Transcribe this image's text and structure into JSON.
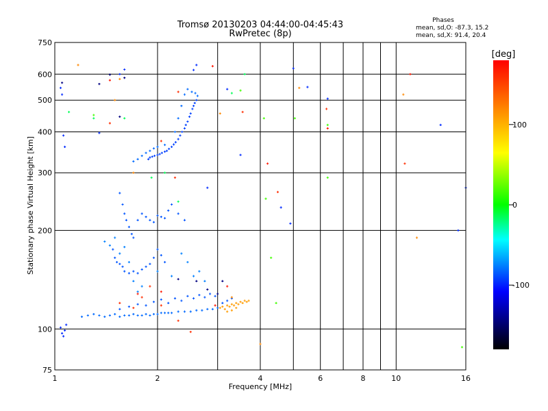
{
  "chart_data": {
    "type": "scatter",
    "title": "Tromsø 20130203 04:44:00-04:45:43",
    "subtitle": "RwPretec (8p)",
    "xlabel": "Frequency [MHz]",
    "ylabel": "Stationary phase Virtual Height [km]",
    "x_scale": "log",
    "y_scale": "log",
    "xlim": [
      1,
      16
    ],
    "ylim": [
      75,
      750
    ],
    "x_ticks": [
      1,
      2,
      4,
      6,
      8,
      10,
      16
    ],
    "x_tick_labels": [
      "1",
      "2",
      "4",
      "6",
      "8",
      "10",
      "16"
    ],
    "x_gridlines": [
      1,
      2,
      3,
      4,
      5,
      6,
      7,
      8,
      9,
      10,
      16
    ],
    "y_ticks": [
      75,
      100,
      200,
      300,
      400,
      500,
      600,
      750
    ],
    "y_tick_labels": [
      "75",
      "100",
      "200",
      "300",
      "400",
      "500",
      "600",
      "750"
    ],
    "y_gridlines": [
      100,
      200,
      300,
      400,
      500,
      600
    ],
    "grid": true,
    "stats": {
      "heading": "Phases",
      "line_o": "mean, sd,O: -87.3, 15.2",
      "line_x": "mean, sd,X:  91.4, 20.4"
    },
    "colorbar": {
      "label": "[deg]",
      "range": [
        -180,
        180
      ],
      "tick_values": [
        100,
        0,
        -100
      ],
      "tick_labels": [
        "100",
        "0",
        "-100"
      ],
      "palette": [
        "#ff0000",
        "#ff8800",
        "#ffff00",
        "#00ff00",
        "#00ffff",
        "#0000ff",
        "#000000"
      ]
    },
    "traces": [
      {
        "phase": -95,
        "points": [
          [
            1.2,
            109
          ],
          [
            1.25,
            110
          ],
          [
            1.3,
            111
          ],
          [
            1.35,
            110
          ],
          [
            1.4,
            109
          ],
          [
            1.45,
            110
          ],
          [
            1.5,
            111
          ],
          [
            1.55,
            109
          ],
          [
            1.6,
            110
          ],
          [
            1.65,
            110
          ],
          [
            1.7,
            111
          ],
          [
            1.75,
            110
          ],
          [
            1.8,
            110
          ],
          [
            1.85,
            111
          ],
          [
            1.9,
            110
          ],
          [
            1.95,
            111
          ],
          [
            2.0,
            111
          ],
          [
            2.05,
            112
          ],
          [
            2.1,
            112
          ],
          [
            2.15,
            112
          ],
          [
            2.2,
            112
          ],
          [
            2.3,
            113
          ],
          [
            2.4,
            113
          ],
          [
            2.5,
            113
          ],
          [
            2.6,
            114
          ],
          [
            2.7,
            114
          ],
          [
            2.8,
            115
          ],
          [
            2.9,
            115
          ],
          [
            3.0,
            116
          ]
        ]
      },
      {
        "phase": -100,
        "points": [
          [
            1.55,
            115
          ],
          [
            1.65,
            117
          ],
          [
            1.75,
            119
          ],
          [
            1.85,
            118
          ],
          [
            1.95,
            121
          ],
          [
            2.05,
            123
          ],
          [
            2.15,
            120
          ],
          [
            2.25,
            124
          ],
          [
            2.35,
            122
          ],
          [
            2.45,
            126
          ],
          [
            2.55,
            124
          ],
          [
            2.65,
            127
          ],
          [
            2.75,
            125
          ],
          [
            2.85,
            128
          ],
          [
            2.95,
            126
          ],
          [
            3.1,
            120
          ],
          [
            3.2,
            122
          ],
          [
            3.3,
            124
          ]
        ]
      },
      {
        "phase": 110,
        "points": [
          [
            3.05,
            116
          ],
          [
            3.1,
            117
          ],
          [
            3.15,
            115
          ],
          [
            3.2,
            118
          ],
          [
            3.25,
            117
          ],
          [
            3.3,
            119
          ],
          [
            3.35,
            118
          ],
          [
            3.4,
            120
          ],
          [
            3.45,
            119
          ],
          [
            3.5,
            121
          ],
          [
            3.55,
            120
          ],
          [
            3.6,
            122
          ],
          [
            3.65,
            121
          ],
          [
            3.7,
            122
          ],
          [
            3.2,
            113
          ],
          [
            3.3,
            114
          ],
          [
            3.4,
            116
          ]
        ]
      },
      {
        "phase": -105,
        "points": [
          [
            1.88,
            330
          ],
          [
            1.9,
            334
          ],
          [
            1.93,
            336
          ],
          [
            1.96,
            338
          ],
          [
            2.0,
            340
          ],
          [
            2.03,
            342
          ],
          [
            2.06,
            345
          ],
          [
            2.1,
            348
          ],
          [
            2.13,
            350
          ],
          [
            2.16,
            355
          ],
          [
            2.2,
            360
          ],
          [
            2.23,
            366
          ],
          [
            2.26,
            372
          ],
          [
            2.3,
            380
          ],
          [
            2.33,
            390
          ],
          [
            2.36,
            400
          ],
          [
            2.4,
            410
          ],
          [
            2.42,
            420
          ],
          [
            2.45,
            430
          ],
          [
            2.48,
            445
          ],
          [
            2.5,
            455
          ],
          [
            2.53,
            470
          ],
          [
            2.55,
            480
          ],
          [
            2.57,
            490
          ],
          [
            2.6,
            500
          ]
        ]
      },
      {
        "phase": -95,
        "points": [
          [
            1.7,
            325
          ],
          [
            1.75,
            330
          ],
          [
            1.8,
            338
          ],
          [
            1.85,
            345
          ],
          [
            1.9,
            350
          ],
          [
            1.95,
            356
          ],
          [
            2.0,
            360
          ],
          [
            2.1,
            365
          ],
          [
            2.25,
            400
          ],
          [
            2.3,
            440
          ],
          [
            2.35,
            480
          ],
          [
            2.4,
            520
          ],
          [
            2.45,
            540
          ],
          [
            2.52,
            530
          ],
          [
            2.58,
            525
          ],
          [
            2.62,
            515
          ]
        ]
      },
      {
        "phase": -100,
        "points": [
          [
            1.55,
            260
          ],
          [
            1.58,
            240
          ],
          [
            1.6,
            225
          ],
          [
            1.62,
            215
          ],
          [
            1.65,
            205
          ],
          [
            1.68,
            195
          ],
          [
            1.7,
            190
          ],
          [
            1.75,
            215
          ],
          [
            1.8,
            225
          ],
          [
            1.85,
            220
          ],
          [
            1.9,
            215
          ],
          [
            1.95,
            212
          ],
          [
            2.0,
            222
          ],
          [
            2.05,
            220
          ],
          [
            2.1,
            218
          ],
          [
            2.15,
            230
          ],
          [
            2.2,
            240
          ],
          [
            2.3,
            225
          ],
          [
            2.4,
            215
          ]
        ]
      },
      {
        "phase": -100,
        "points": [
          [
            1.48,
            175
          ],
          [
            1.5,
            165
          ],
          [
            1.52,
            160
          ],
          [
            1.55,
            158
          ],
          [
            1.58,
            155
          ],
          [
            1.6,
            150
          ],
          [
            1.65,
            148
          ],
          [
            1.7,
            150
          ],
          [
            1.75,
            148
          ],
          [
            1.8,
            152
          ],
          [
            1.85,
            155
          ],
          [
            1.9,
            158
          ],
          [
            1.95,
            165
          ],
          [
            2.0,
            175
          ],
          [
            2.05,
            168
          ],
          [
            2.1,
            160
          ]
        ]
      },
      {
        "phase": -90,
        "points": [
          [
            1.4,
            185
          ],
          [
            1.45,
            180
          ],
          [
            1.5,
            190
          ],
          [
            1.55,
            170
          ],
          [
            1.6,
            178
          ],
          [
            1.65,
            160
          ],
          [
            1.7,
            140
          ],
          [
            1.75,
            130
          ],
          [
            1.8,
            135
          ],
          [
            2.0,
            150
          ],
          [
            2.2,
            145
          ],
          [
            2.35,
            170
          ],
          [
            2.45,
            160
          ],
          [
            2.55,
            145
          ],
          [
            2.65,
            150
          ],
          [
            2.75,
            140
          ]
        ]
      },
      {
        "phase": -110,
        "points": [
          [
            1.04,
            101
          ],
          [
            1.05,
            97
          ],
          [
            1.06,
            95
          ],
          [
            1.07,
            99
          ],
          [
            1.08,
            103
          ],
          [
            1.04,
            545
          ],
          [
            1.05,
            520
          ],
          [
            1.06,
            390
          ],
          [
            1.07,
            360
          ],
          [
            1.35,
            397
          ],
          [
            1.55,
            600
          ],
          [
            1.6,
            620
          ],
          [
            2.55,
            618
          ],
          [
            2.6,
            640
          ],
          [
            3.2,
            540
          ],
          [
            5.0,
            625
          ],
          [
            5.5,
            548
          ],
          [
            6.3,
            505
          ],
          [
            13.5,
            420
          ],
          [
            15.2,
            200
          ],
          [
            16.0,
            270
          ],
          [
            4.9,
            210
          ],
          [
            4.6,
            235
          ],
          [
            2.8,
            270
          ],
          [
            3.5,
            340
          ]
        ]
      },
      {
        "phase": 15,
        "points": [
          [
            3.5,
            535
          ],
          [
            4.1,
            440
          ],
          [
            5.05,
            440
          ],
          [
            4.15,
            250
          ],
          [
            4.3,
            165
          ],
          [
            4.45,
            120
          ],
          [
            1.3,
            450
          ],
          [
            6.3,
            290
          ],
          [
            6.3,
            420
          ],
          [
            15.6,
            88
          ]
        ]
      },
      {
        "phase": 120,
        "points": [
          [
            1.17,
            640
          ],
          [
            1.5,
            500
          ],
          [
            1.55,
            580
          ],
          [
            1.7,
            300
          ],
          [
            3.05,
            455
          ],
          [
            3.3,
            125
          ],
          [
            4.0,
            90
          ],
          [
            10.5,
            520
          ],
          [
            11.5,
            190
          ],
          [
            5.2,
            545
          ]
        ]
      },
      {
        "phase": 160,
        "points": [
          [
            1.55,
            120
          ],
          [
            1.7,
            116
          ],
          [
            1.8,
            125
          ],
          [
            2.05,
            118
          ],
          [
            2.3,
            106
          ],
          [
            2.5,
            98
          ],
          [
            3.55,
            460
          ],
          [
            10.6,
            320
          ],
          [
            6.25,
            470
          ],
          [
            4.5,
            262
          ],
          [
            1.45,
            425
          ],
          [
            2.3,
            530
          ],
          [
            2.05,
            375
          ],
          [
            2.25,
            290
          ],
          [
            1.9,
            135
          ]
        ]
      },
      {
        "phase": -20,
        "points": [
          [
            1.1,
            460
          ],
          [
            1.3,
            440
          ],
          [
            1.6,
            440
          ],
          [
            1.92,
            290
          ],
          [
            2.1,
            300
          ],
          [
            2.3,
            245
          ],
          [
            3.3,
            525
          ],
          [
            3.6,
            600
          ]
        ]
      },
      {
        "phase": -150,
        "points": [
          [
            1.05,
            565
          ],
          [
            1.35,
            560
          ],
          [
            1.45,
            598
          ],
          [
            1.6,
            585
          ],
          [
            1.55,
            445
          ],
          [
            2.3,
            142
          ],
          [
            2.6,
            140
          ],
          [
            2.8,
            132
          ],
          [
            3.0,
            128
          ],
          [
            3.1,
            140
          ]
        ]
      },
      {
        "phase": 170,
        "points": [
          [
            1.45,
            575
          ],
          [
            2.9,
            635
          ],
          [
            3.2,
            135
          ],
          [
            2.95,
            118
          ],
          [
            2.05,
            130
          ],
          [
            1.75,
            128
          ],
          [
            4.2,
            320
          ],
          [
            11.0,
            600
          ],
          [
            6.3,
            410
          ]
        ]
      }
    ]
  }
}
